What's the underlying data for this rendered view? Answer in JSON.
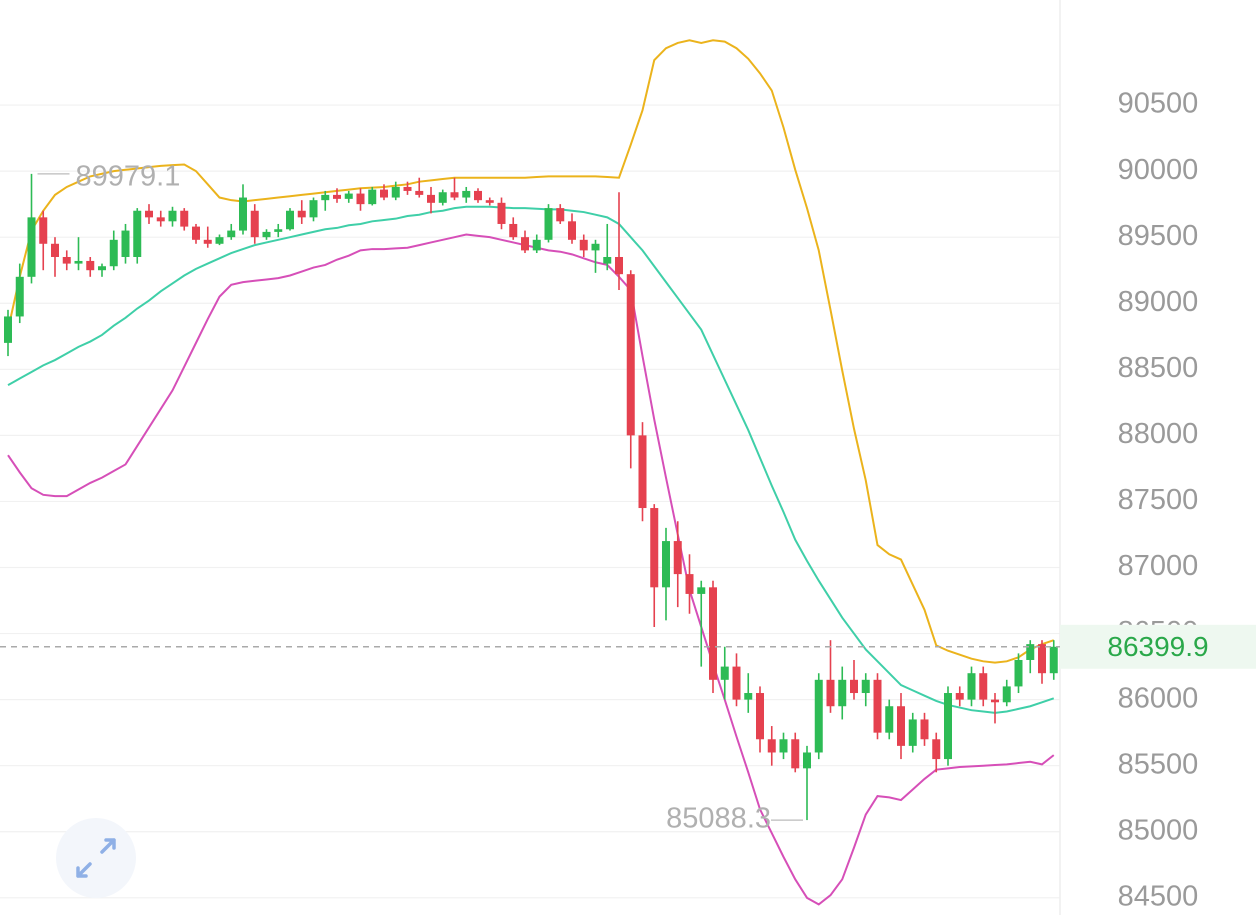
{
  "chart_data": {
    "type": "candlestick",
    "up_color": "#2dbb55",
    "down_color": "#e5414f",
    "grid": true,
    "ylim": [
      84370,
      91295
    ],
    "yticks": [
      84500,
      85000,
      85500,
      86000,
      86500,
      87000,
      87500,
      88000,
      88500,
      89000,
      89500,
      90000,
      90500
    ],
    "open": [
      88700,
      88900,
      89200,
      89650,
      89450,
      89350,
      89300,
      89320,
      89250,
      89280,
      89350,
      89350,
      89700,
      89650,
      89620,
      89700,
      89580,
      89480,
      89450,
      89500,
      89550,
      89700,
      89500,
      89540,
      89560,
      89700,
      89650,
      89780,
      89820,
      89790,
      89830,
      89750,
      89860,
      89800,
      89880,
      89850,
      89820,
      89760,
      89840,
      89800,
      89850,
      89780,
      89760,
      89600,
      89500,
      89400,
      89480,
      89720,
      89620,
      89480,
      89400,
      89300,
      89350,
      89220,
      88000,
      87450,
      86850,
      87200,
      86950,
      86800,
      86850,
      86150,
      86250,
      86000,
      86050,
      85700,
      85600,
      85700,
      85480,
      85600,
      86150,
      85950,
      86150,
      86050,
      86150,
      85750,
      85950,
      85650,
      85850,
      85700,
      85550,
      86050,
      86000,
      86200,
      86000,
      85980,
      86100,
      86300,
      86420,
      86200
    ],
    "high": [
      88950,
      89300,
      89979.1,
      89700,
      89500,
      89400,
      89500,
      89350,
      89300,
      89550,
      89600,
      89720,
      89750,
      89700,
      89730,
      89720,
      89600,
      89580,
      89520,
      89600,
      89900,
      89750,
      89560,
      89600,
      89720,
      89780,
      89800,
      89850,
      89870,
      89850,
      89870,
      89880,
      89900,
      89920,
      89920,
      89950,
      89880,
      89860,
      89950,
      89880,
      89870,
      89800,
      89800,
      89650,
      89550,
      89520,
      89750,
      89750,
      89680,
      89520,
      89480,
      89600,
      89840,
      89250,
      88100,
      87480,
      87300,
      87350,
      87100,
      86900,
      86900,
      86400,
      86350,
      86200,
      86100,
      85800,
      85750,
      85750,
      85650,
      86200,
      86450,
      86250,
      86300,
      86200,
      86200,
      86000,
      86050,
      85900,
      85900,
      85750,
      86100,
      86100,
      86250,
      86250,
      86050,
      86150,
      86350,
      86450,
      86450,
      86450
    ],
    "low": [
      88600,
      88850,
      89150,
      89250,
      89200,
      89250,
      89250,
      89200,
      89200,
      89250,
      89300,
      89300,
      89600,
      89580,
      89580,
      89550,
      89450,
      89420,
      89440,
      89480,
      89520,
      89450,
      89480,
      89500,
      89550,
      89600,
      89620,
      89700,
      89760,
      89760,
      89700,
      89740,
      89780,
      89780,
      89820,
      89800,
      89680,
      89740,
      89780,
      89760,
      89760,
      89740,
      89560,
      89480,
      89380,
      89380,
      89460,
      89600,
      89450,
      89350,
      89230,
      89250,
      89100,
      87750,
      87350,
      86550,
      86600,
      86700,
      86650,
      86250,
      86050,
      86000,
      85950,
      85900,
      85600,
      85500,
      85550,
      85450,
      85088.3,
      85550,
      85900,
      85850,
      86000,
      85950,
      85700,
      85700,
      85550,
      85600,
      85650,
      85450,
      85500,
      85950,
      85950,
      85950,
      85820,
      85950,
      86050,
      86200,
      86120,
      86150
    ],
    "close": [
      88900,
      89200,
      89650,
      89450,
      89350,
      89300,
      89320,
      89250,
      89280,
      89480,
      89550,
      89700,
      89650,
      89620,
      89700,
      89580,
      89480,
      89450,
      89500,
      89550,
      89800,
      89500,
      89540,
      89560,
      89700,
      89650,
      89780,
      89820,
      89790,
      89830,
      89750,
      89860,
      89800,
      89880,
      89850,
      89820,
      89760,
      89840,
      89800,
      89850,
      89780,
      89760,
      89600,
      89500,
      89400,
      89480,
      89720,
      89620,
      89480,
      89400,
      89450,
      89350,
      89220,
      88000,
      87450,
      86850,
      87200,
      86950,
      86800,
      86850,
      86150,
      86250,
      86000,
      86050,
      85700,
      85600,
      85700,
      85480,
      85600,
      86150,
      85950,
      86150,
      86050,
      86150,
      85750,
      85950,
      85650,
      85850,
      85700,
      85550,
      86050,
      86000,
      86200,
      86000,
      85980,
      86100,
      86300,
      86420,
      86200,
      86399.9
    ],
    "bands": [
      {
        "color": "#ebb31c",
        "values": [
          88800,
          89200,
          89550,
          89700,
          89820,
          89880,
          89920,
          89960,
          89980,
          90000,
          90010,
          90020,
          90030,
          90040,
          90045,
          90050,
          90000,
          89900,
          89800,
          89780,
          89770,
          89780,
          89790,
          89800,
          89810,
          89820,
          89830,
          89840,
          89850,
          89860,
          89870,
          89875,
          89880,
          89890,
          89900,
          89920,
          89930,
          89940,
          89950,
          89950,
          89950,
          89950,
          89950,
          89950,
          89950,
          89955,
          89960,
          89960,
          89960,
          89960,
          89960,
          89955,
          89950,
          90200,
          90460,
          90840,
          90930,
          90970,
          90990,
          90970,
          90990,
          90980,
          90930,
          90850,
          90740,
          90610,
          90330,
          90010,
          89720,
          89400,
          88950,
          88490,
          88050,
          87660,
          87170,
          87100,
          87060,
          86870,
          86680,
          86410,
          86370,
          86340,
          86310,
          86290,
          86280,
          86290,
          86320,
          86380,
          86420,
          86450
        ]
      },
      {
        "color": "#3fcfa8",
        "values": [
          88380,
          88430,
          88480,
          88530,
          88570,
          88620,
          88670,
          88710,
          88760,
          88830,
          88890,
          88960,
          89020,
          89090,
          89150,
          89210,
          89260,
          89300,
          89340,
          89380,
          89410,
          89440,
          89460,
          89480,
          89500,
          89520,
          89540,
          89560,
          89570,
          89590,
          89600,
          89620,
          89630,
          89640,
          89660,
          89670,
          89690,
          89700,
          89720,
          89730,
          89730,
          89730,
          89725,
          89720,
          89720,
          89715,
          89710,
          89710,
          89700,
          89690,
          89670,
          89650,
          89600,
          89500,
          89400,
          89280,
          89160,
          89040,
          88920,
          88800,
          88610,
          88420,
          88230,
          88040,
          87830,
          87620,
          87420,
          87210,
          87050,
          86900,
          86760,
          86620,
          86500,
          86380,
          86290,
          86200,
          86110,
          86070,
          86030,
          85990,
          85960,
          85940,
          85920,
          85910,
          85900,
          85910,
          85930,
          85950,
          85980,
          86010
        ]
      },
      {
        "color": "#d64fb8",
        "values": [
          87850,
          87720,
          87600,
          87550,
          87540,
          87540,
          87590,
          87640,
          87680,
          87730,
          87780,
          87920,
          88060,
          88200,
          88340,
          88520,
          88700,
          88880,
          89050,
          89140,
          89160,
          89170,
          89180,
          89190,
          89210,
          89240,
          89270,
          89290,
          89330,
          89360,
          89400,
          89410,
          89410,
          89415,
          89420,
          89440,
          89460,
          89480,
          89500,
          89520,
          89510,
          89500,
          89480,
          89460,
          89440,
          89420,
          89400,
          89390,
          89370,
          89340,
          89310,
          89290,
          89200,
          89100,
          88600,
          88120,
          87680,
          87250,
          86830,
          86550,
          86270,
          86000,
          85720,
          85450,
          85170,
          84990,
          84810,
          84640,
          84500,
          84450,
          84520,
          84640,
          84880,
          85130,
          85270,
          85260,
          85240,
          85320,
          85400,
          85470,
          85480,
          85490,
          85495,
          85500,
          85505,
          85510,
          85520,
          85530,
          85510,
          85580
        ]
      }
    ]
  }
}
